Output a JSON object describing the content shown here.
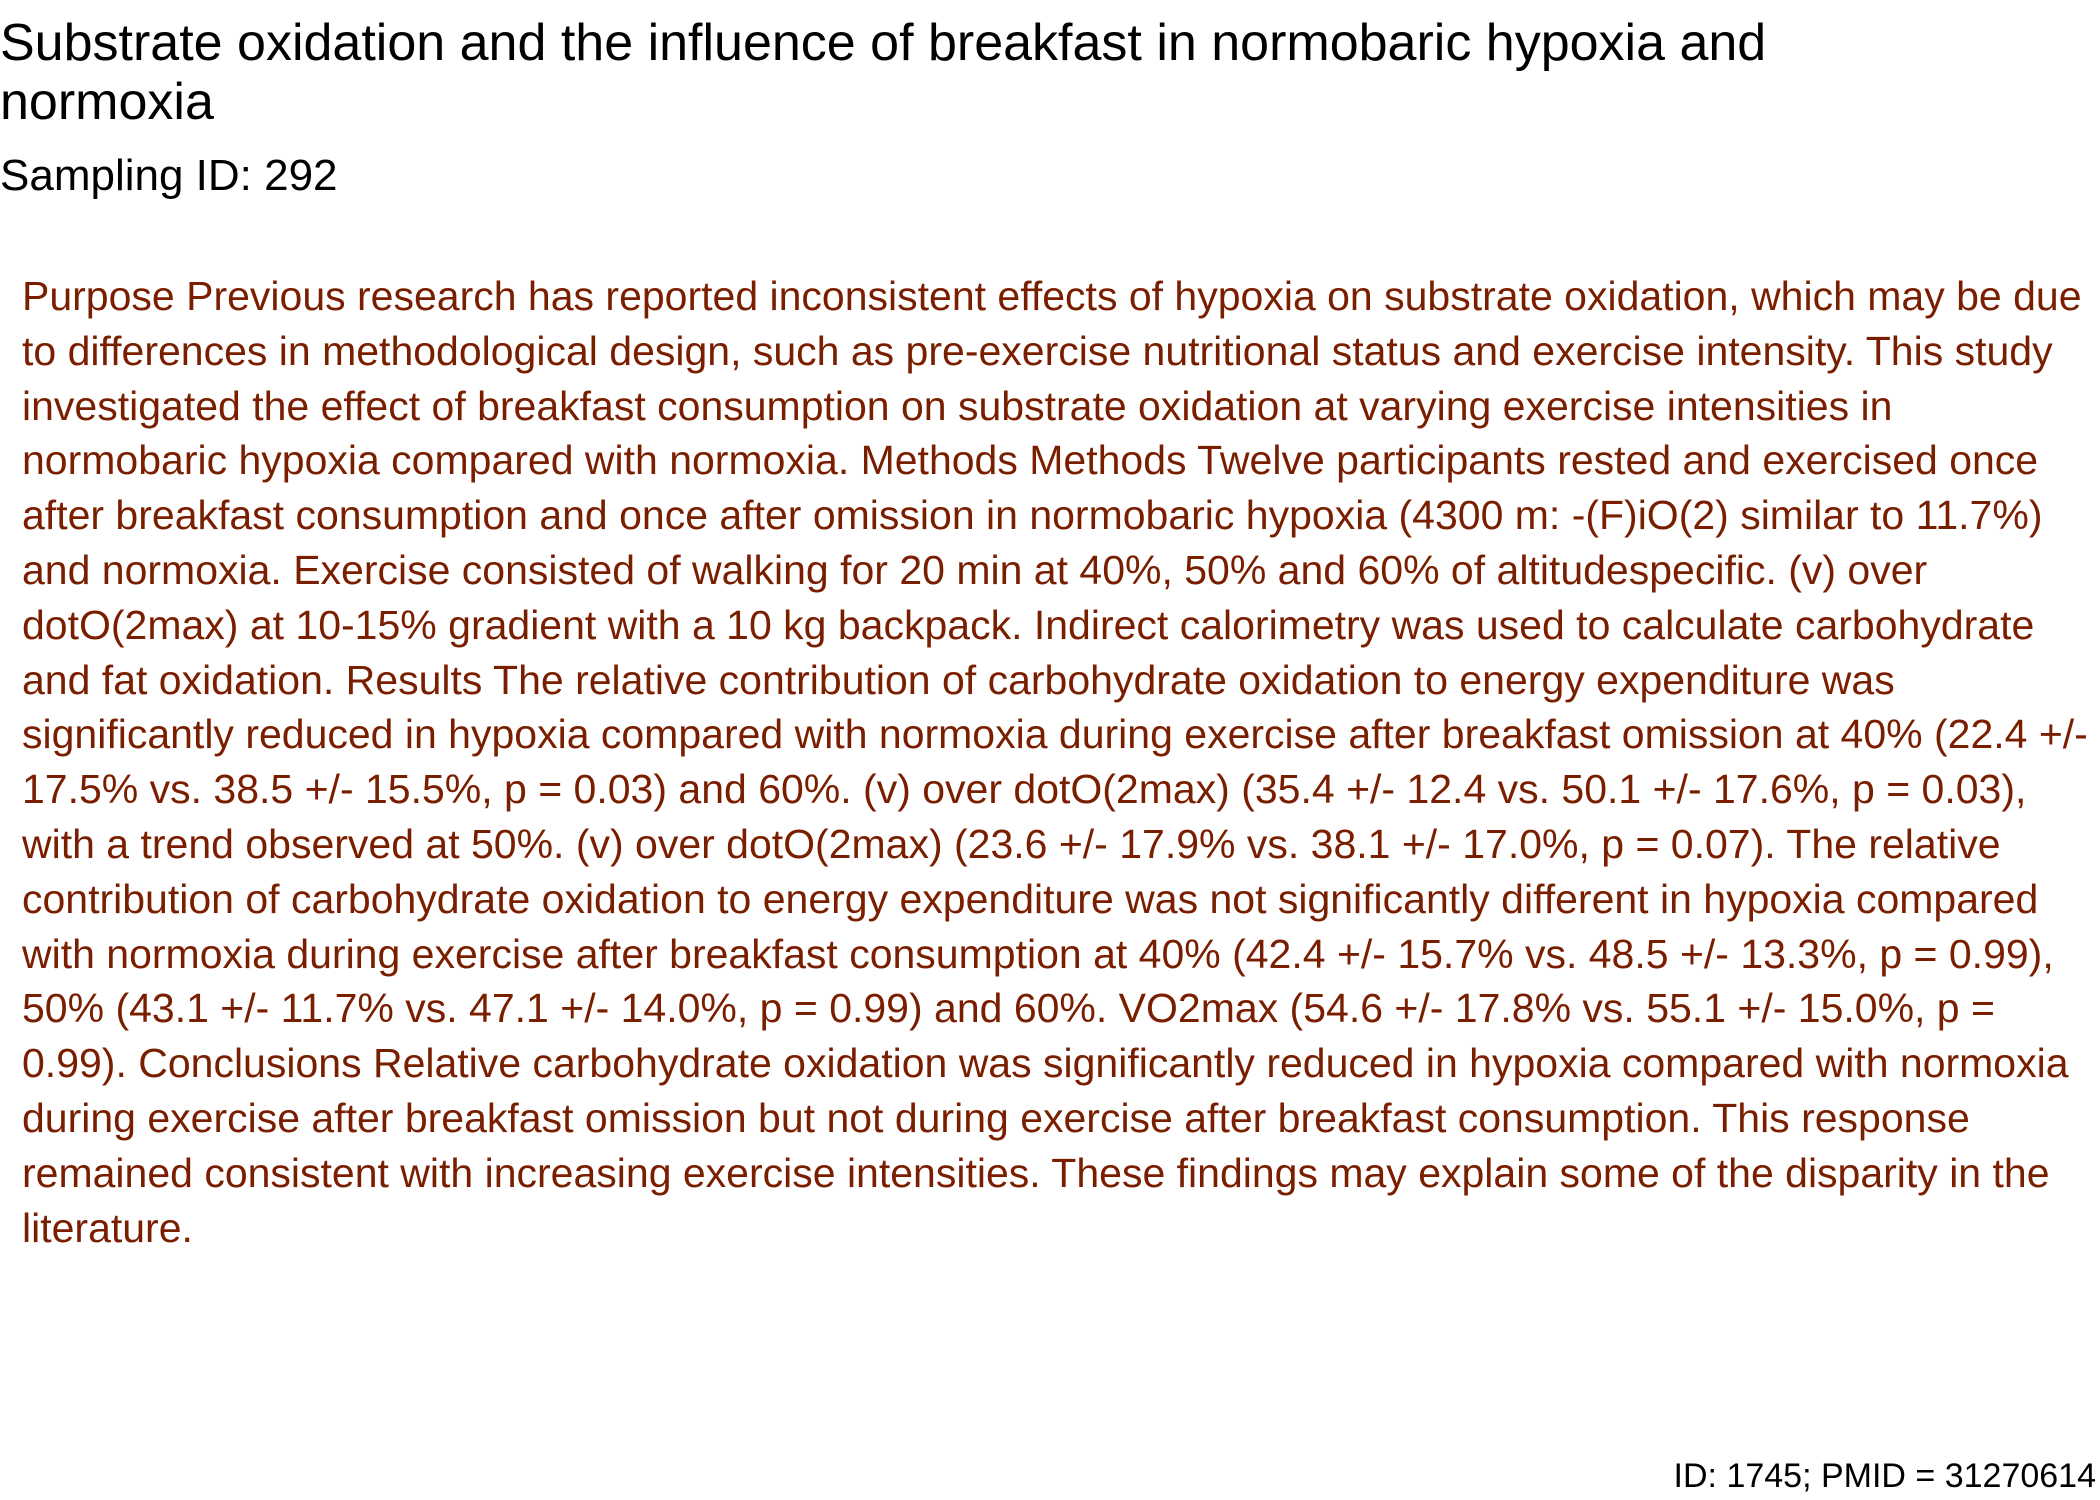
{
  "document": {
    "title": "Substrate oxidation and the influence of breakfast in normobaric hypoxia and normoxia",
    "sampling_id": "Sampling ID: 292",
    "abstract": "Purpose Previous research has reported inconsistent effects of hypoxia on substrate oxidation, which may be due to differences in methodological design, such as pre-exercise nutritional status and exercise intensity. This study investigated the effect of breakfast consumption on substrate oxidation at varying exercise intensities in normobaric hypoxia compared with normoxia. Methods Methods Twelve participants rested and exercised once after breakfast consumption and once after omission in normobaric hypoxia (4300 m: -(F)iO(2) similar to 11.7%) and normoxia. Exercise consisted of walking for 20 min at 40%, 50% and 60% of altitudespecific. (v) over dotO(2max) at 10-15% gradient with a 10 kg backpack. Indirect calorimetry was used to calculate carbohydrate and fat oxidation. Results The relative contribution of carbohydrate oxidation to energy expenditure was significantly reduced in hypoxia compared with normoxia during exercise after breakfast omission at 40% (22.4 +/- 17.5% vs. 38.5 +/- 15.5%, p = 0.03) and 60%. (v) over dotO(2max) (35.4 +/- 12.4 vs. 50.1 +/- 17.6%, p = 0.03), with a trend observed at 50%. (v) over dotO(2max) (23.6 +/- 17.9% vs. 38.1 +/- 17.0%, p = 0.07). The relative contribution of carbohydrate oxidation to energy expenditure was not significantly different in hypoxia compared with normoxia during exercise after breakfast consumption at 40% (42.4 +/- 15.7% vs. 48.5 +/- 13.3%, p = 0.99), 50% (43.1 +/- 11.7% vs. 47.1 +/- 14.0%, p = 0.99) and 60%. VO2max (54.6 +/- 17.8% vs. 55.1 +/- 15.0%, p = 0.99). Conclusions Relative carbohydrate oxidation was significantly reduced in hypoxia compared with normoxia during exercise after breakfast omission but not during exercise after breakfast consumption. This response remained consistent with increasing exercise intensities. These findings may explain some of the disparity in the literature.",
    "footer_id": "ID: 1745; PMID = 31270614"
  },
  "colors": {
    "title_text": "#000000",
    "abstract_text": "#7a1e00",
    "background": "#ffffff"
  }
}
